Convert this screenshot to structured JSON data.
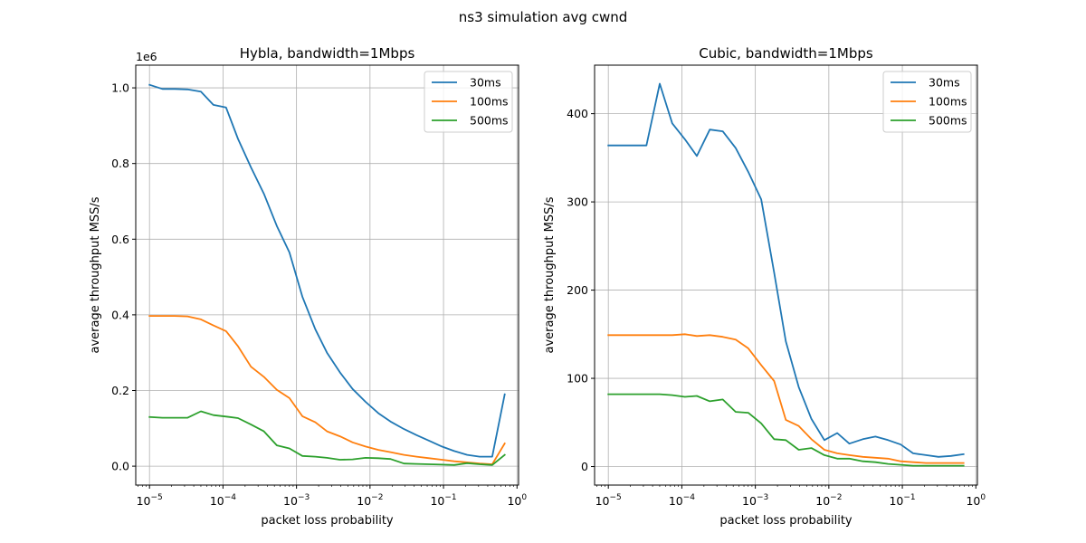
{
  "figure": {
    "title": "ns3 simulation avg cwnd"
  },
  "chart_data": [
    {
      "type": "line",
      "title": "Hybla, bandwidth=1Mbps",
      "xlabel": "packet loss probability",
      "ylabel": "average throughput MSS/s",
      "xscale": "log",
      "xlim": [
        6.5e-06,
        1.05
      ],
      "ylim": [
        -50000,
        1060000
      ],
      "y_offset_label": "1e6",
      "yticks": [
        0,
        200000,
        400000,
        600000,
        800000,
        1000000
      ],
      "ytick_labels": [
        "0.0",
        "0.2",
        "0.4",
        "0.6",
        "0.8",
        "1.0"
      ],
      "xticks": [
        1e-05,
        0.0001,
        0.001,
        0.01,
        0.1,
        1
      ],
      "xtick_exponents": [
        "-5",
        "-4",
        "-3",
        "-2",
        "-1",
        "0"
      ],
      "grid": true,
      "legend": "top-right",
      "series": [
        {
          "name": "30ms",
          "color": "#1f77b4",
          "x": [
            1e-05,
            1.5e-05,
            2.2e-05,
            3.3e-05,
            5e-05,
            7.4e-05,
            0.00011,
            0.00016,
            0.00024,
            0.00036,
            0.00054,
            0.0008,
            0.0012,
            0.0018,
            0.0026,
            0.0039,
            0.0058,
            0.0087,
            0.013,
            0.019,
            0.029,
            0.043,
            0.064,
            0.095,
            0.14,
            0.21,
            0.31,
            0.46,
            0.68
          ],
          "y": [
            1008000,
            997000,
            997000,
            996000,
            990000,
            955000,
            948000,
            865000,
            790000,
            720000,
            635000,
            565000,
            448000,
            362000,
            300000,
            248000,
            204000,
            170000,
            140000,
            118000,
            98000,
            82000,
            67000,
            52000,
            40000,
            30000,
            25000,
            25000,
            190000
          ]
        },
        {
          "name": "100ms",
          "color": "#ff7f0e",
          "x": [
            1e-05,
            1.5e-05,
            2.2e-05,
            3.3e-05,
            5e-05,
            7.4e-05,
            0.00011,
            0.00016,
            0.00024,
            0.00036,
            0.00054,
            0.0008,
            0.0012,
            0.0018,
            0.0026,
            0.0039,
            0.0058,
            0.0087,
            0.013,
            0.019,
            0.029,
            0.043,
            0.064,
            0.095,
            0.14,
            0.21,
            0.31,
            0.46,
            0.68
          ],
          "y": [
            397000,
            397000,
            397000,
            396000,
            388000,
            372000,
            357000,
            317000,
            263000,
            236000,
            202000,
            180000,
            132000,
            116000,
            92000,
            79000,
            63000,
            52000,
            43000,
            37000,
            30000,
            25000,
            21000,
            17000,
            13000,
            10000,
            7000,
            5000,
            60000
          ]
        },
        {
          "name": "500ms",
          "color": "#2ca02c",
          "x": [
            1e-05,
            1.5e-05,
            2.2e-05,
            3.3e-05,
            5e-05,
            7.4e-05,
            0.00011,
            0.00016,
            0.00024,
            0.00036,
            0.00054,
            0.0008,
            0.0012,
            0.0018,
            0.0026,
            0.0039,
            0.0058,
            0.0087,
            0.013,
            0.019,
            0.029,
            0.043,
            0.064,
            0.095,
            0.14,
            0.21,
            0.31,
            0.46,
            0.68
          ],
          "y": [
            130000,
            128000,
            128000,
            128000,
            145000,
            135000,
            131000,
            127000,
            110000,
            92000,
            55000,
            47000,
            27000,
            25000,
            22000,
            17000,
            18000,
            22000,
            21000,
            19000,
            7000,
            6000,
            5000,
            4000,
            3000,
            8000,
            5000,
            3000,
            30000
          ]
        }
      ]
    },
    {
      "type": "line",
      "title": "Cubic, bandwidth=1Mbps",
      "xlabel": "packet loss probability",
      "ylabel": "average throughput MSS/s",
      "xscale": "log",
      "xlim": [
        6.5e-06,
        1.05
      ],
      "ylim": [
        -21,
        455
      ],
      "yticks": [
        0,
        100,
        200,
        300,
        400
      ],
      "ytick_labels": [
        "0",
        "100",
        "200",
        "300",
        "400"
      ],
      "xticks": [
        1e-05,
        0.0001,
        0.001,
        0.01,
        0.1,
        1
      ],
      "xtick_exponents": [
        "-5",
        "-4",
        "-3",
        "-2",
        "-1",
        "0"
      ],
      "grid": true,
      "legend": "top-right",
      "series": [
        {
          "name": "30ms",
          "color": "#1f77b4",
          "x": [
            1e-05,
            1.5e-05,
            2.2e-05,
            3.3e-05,
            5e-05,
            7.4e-05,
            0.00011,
            0.00016,
            0.00024,
            0.00036,
            0.00054,
            0.0008,
            0.0012,
            0.0018,
            0.0026,
            0.0039,
            0.0058,
            0.0087,
            0.013,
            0.019,
            0.029,
            0.043,
            0.064,
            0.095,
            0.14,
            0.21,
            0.31,
            0.46,
            0.68
          ],
          "y": [
            364,
            364,
            364,
            364,
            434,
            389,
            371,
            352,
            382,
            380,
            361,
            334,
            303,
            220,
            142,
            90,
            54,
            30,
            38,
            26,
            31,
            34,
            30,
            25,
            15,
            13,
            11,
            12,
            14
          ]
        },
        {
          "name": "100ms",
          "color": "#ff7f0e",
          "x": [
            1e-05,
            1.5e-05,
            2.2e-05,
            3.3e-05,
            5e-05,
            7.4e-05,
            0.00011,
            0.00016,
            0.00024,
            0.00036,
            0.00054,
            0.0008,
            0.0012,
            0.0018,
            0.0026,
            0.0039,
            0.0058,
            0.0087,
            0.013,
            0.019,
            0.029,
            0.043,
            0.064,
            0.095,
            0.14,
            0.21,
            0.31,
            0.46,
            0.68
          ],
          "y": [
            149,
            149,
            149,
            149,
            149,
            149,
            150,
            148,
            149,
            147,
            144,
            134,
            115,
            97,
            53,
            46,
            31,
            19,
            15,
            13,
            11,
            10,
            9,
            6,
            5,
            4,
            4,
            4,
            4
          ]
        },
        {
          "name": "500ms",
          "color": "#2ca02c",
          "x": [
            1e-05,
            1.5e-05,
            2.2e-05,
            3.3e-05,
            5e-05,
            7.4e-05,
            0.00011,
            0.00016,
            0.00024,
            0.00036,
            0.00054,
            0.0008,
            0.0012,
            0.0018,
            0.0026,
            0.0039,
            0.0058,
            0.0087,
            0.013,
            0.019,
            0.029,
            0.043,
            0.064,
            0.095,
            0.14,
            0.21,
            0.31,
            0.46,
            0.68
          ],
          "y": [
            82,
            82,
            82,
            82,
            82,
            81,
            79,
            80,
            74,
            76,
            62,
            61,
            49,
            31,
            30,
            19,
            21,
            13,
            9,
            9,
            6,
            5,
            3,
            2,
            1,
            1,
            1,
            1,
            1
          ]
        }
      ]
    }
  ]
}
